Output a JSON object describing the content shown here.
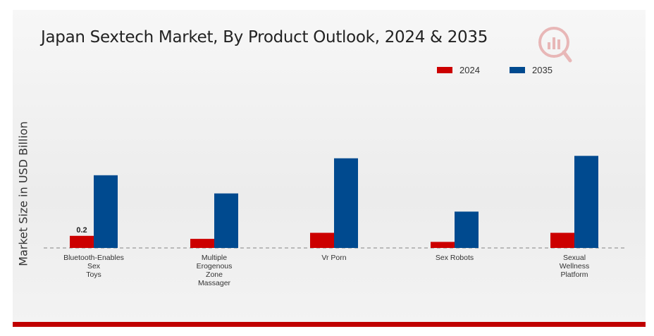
{
  "chart_data": {
    "type": "bar",
    "title": "Japan Sextech Market, By Product Outlook, 2024 & 2035",
    "ylabel": "Market Size in USD Billion",
    "xlabel": "",
    "categories": [
      [
        "Bluetooth-Enables",
        "Sex",
        "Toys"
      ],
      [
        "Multiple",
        "Erogenous",
        "Zone",
        "Massager"
      ],
      [
        "Vr Porn"
      ],
      [
        "Sex Robots"
      ],
      [
        "Sexual",
        "Wellness",
        "Platform"
      ]
    ],
    "series": [
      {
        "name": "2024",
        "color": "#cc0000",
        "values": [
          0.2,
          0.15,
          0.25,
          0.1,
          0.25
        ]
      },
      {
        "name": "2035",
        "color": "#004a8f",
        "values": [
          1.2,
          0.9,
          1.48,
          0.6,
          1.52
        ]
      }
    ],
    "data_labels": [
      {
        "series": 0,
        "index": 0,
        "text": "0.2"
      }
    ],
    "ylim": [
      0,
      2.4
    ],
    "legend_position": "top-right",
    "grid": false,
    "baseline": "dashed"
  },
  "colors": {
    "accent_bar": "#c00000",
    "logo": "#e8b7b7"
  },
  "icons": {
    "logo": "mrfr-logo-icon"
  }
}
